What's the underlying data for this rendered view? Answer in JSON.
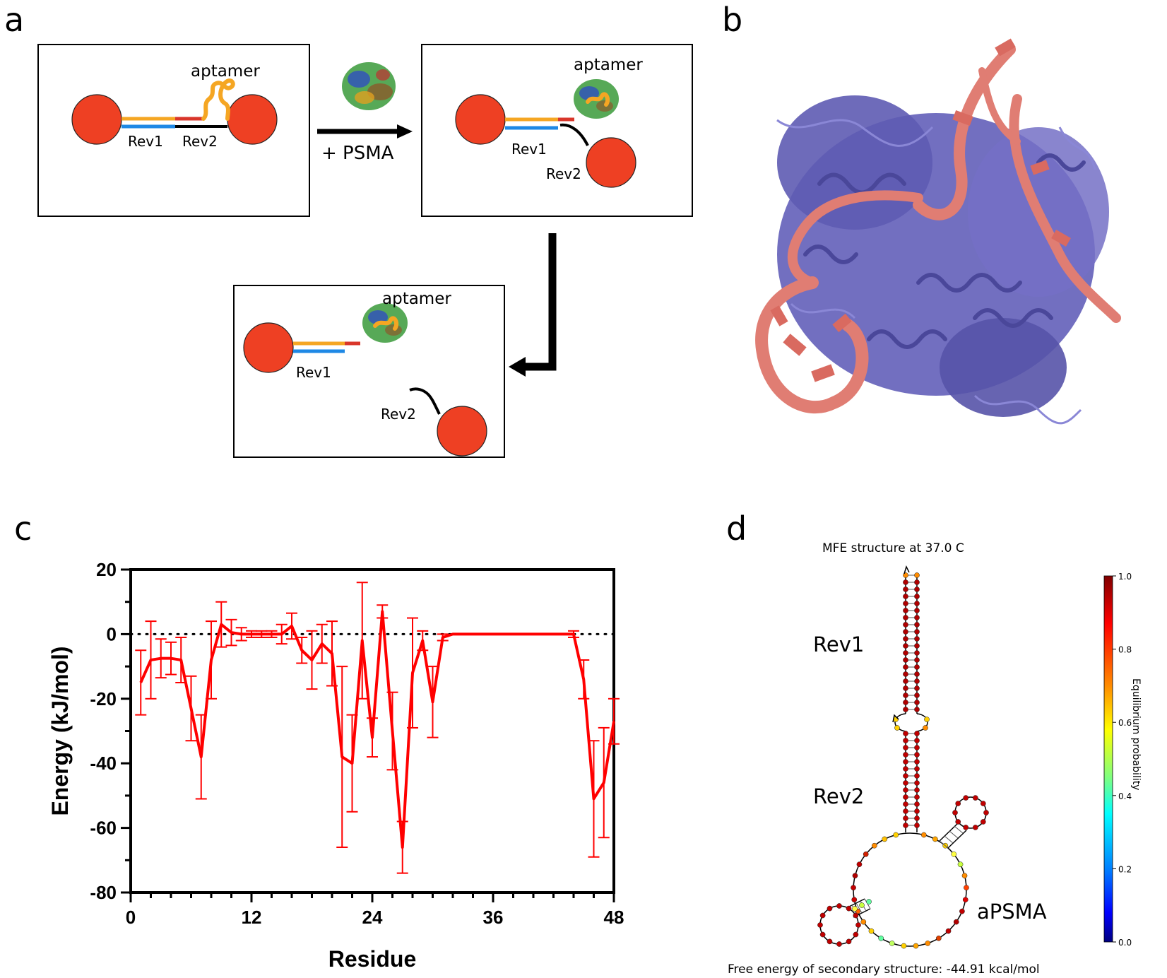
{
  "panel_a": {
    "letter": "a",
    "aptamer_label": "aptamer",
    "rev1_label": "Rev1",
    "rev2_label": "Rev2",
    "arrow_label": "+ PSMA",
    "colors": {
      "bead": "#ee4023",
      "rev1_strand": "#1e88e5",
      "aptamer": "#f5a623",
      "rev2_binding": "#d9362a",
      "rev2_strand": "#000000"
    }
  },
  "panel_b": {
    "letter": "b",
    "colors": {
      "protein": "#6a67bd",
      "aptamer": "#e07d73"
    }
  },
  "panel_c": {
    "letter": "c",
    "chart_data": {
      "type": "line",
      "xlabel": "Residue",
      "ylabel": "Energy (kJ/mol)",
      "xlim": [
        0,
        48
      ],
      "ylim": [
        -80,
        20
      ],
      "x_ticks": [
        0,
        12,
        24,
        36,
        48
      ],
      "y_ticks": [
        20,
        0,
        -20,
        -40,
        -60,
        -80
      ],
      "reference_line": 0,
      "grid": false,
      "color": "#ff0000",
      "series": [
        {
          "x": [
            1,
            2,
            3,
            4,
            5,
            6,
            7,
            8,
            9,
            10,
            11,
            12,
            13,
            14,
            15,
            16,
            17,
            18,
            19,
            20,
            21,
            22,
            23,
            24,
            25,
            26,
            27,
            28,
            29,
            30,
            31,
            32,
            44,
            45,
            46,
            47,
            48
          ],
          "y": [
            -15,
            -8,
            -7.5,
            -7.5,
            -8,
            -23,
            -38,
            -8,
            3,
            0.5,
            0,
            0,
            0,
            0,
            0,
            2.5,
            -5,
            -8,
            -3,
            -6,
            -38,
            -40,
            -2,
            -32,
            7,
            -30,
            -66,
            -12,
            -2,
            -21,
            -1,
            0,
            0,
            -14,
            -51,
            -46,
            -27
          ],
          "err": [
            10,
            12,
            6,
            5,
            7,
            10,
            13,
            12,
            7,
            4,
            2,
            1,
            1,
            1,
            3,
            4,
            4,
            9,
            6,
            10,
            28,
            15,
            18,
            6,
            2,
            12,
            8,
            17,
            3,
            11,
            1,
            0,
            1,
            6,
            18,
            17,
            7
          ]
        }
      ]
    }
  },
  "panel_d": {
    "letter": "d",
    "title": "MFE structure at 37.0 C",
    "rev1_label": "Rev1",
    "rev2_label": "Rev2",
    "apsma_label": "aPSMA",
    "footer": "Free energy of secondary structure: -44.91 kcal/mol",
    "colorbar_label": "Equilibrium probability",
    "colorbar_ticks": [
      "1.0",
      "0.8",
      "0.6",
      "0.4",
      "0.2",
      "0.0"
    ]
  }
}
